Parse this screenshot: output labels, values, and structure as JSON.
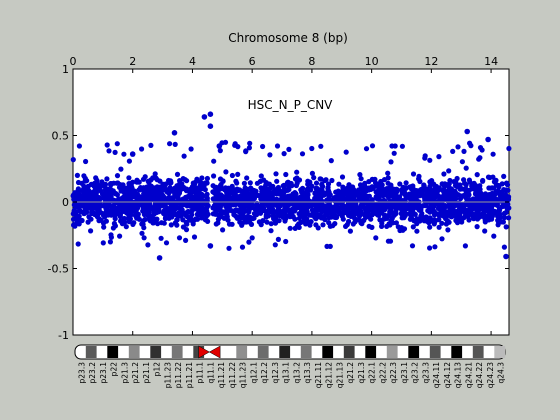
{
  "chart_data": {
    "type": "scatter",
    "title": "Chromosome 8 (bp)",
    "annotation": "HSC_N_P_CNV",
    "xlim": [
      0,
      14.6
    ],
    "ylim": [
      -1,
      1
    ],
    "xticks": [
      "0",
      "2",
      "4",
      "6",
      "8",
      "10",
      "12",
      "14"
    ],
    "yticks": [
      "1",
      "0.5",
      "0",
      "-0.5",
      "-1"
    ],
    "marker_color": "#0000cc",
    "baseline_color": "#999999",
    "gap_x": 4.6,
    "highlights": [
      {
        "x": 4.4,
        "y": 0.64
      },
      {
        "x": 4.6,
        "y": 0.66
      },
      {
        "x": 4.6,
        "y": 0.57
      },
      {
        "x": 4.9,
        "y": 0.42
      },
      {
        "x": 3.4,
        "y": 0.52
      },
      {
        "x": 2.0,
        "y": 0.36
      },
      {
        "x": 13.2,
        "y": 0.53
      },
      {
        "x": 13.9,
        "y": 0.47
      },
      {
        "x": 2.9,
        "y": -0.42
      },
      {
        "x": 14.5,
        "y": -0.41
      },
      {
        "x": 4.6,
        "y": -0.33
      }
    ],
    "ideogram": {
      "bands": [
        "p23.3",
        "p23.2",
        "p23.1",
        "p22",
        "p21.3",
        "p21.2",
        "p21.1",
        "p12",
        "p11.23",
        "p11.22",
        "p11.21",
        "p11.1",
        "q11.1",
        "q11.21",
        "q11.22",
        "q11.23",
        "q12.1",
        "q12.2",
        "q12.3",
        "q13.1",
        "q13.2",
        "q13.3",
        "q21.11",
        "q21.12",
        "q21.13",
        "q21.2",
        "q21.3",
        "q22.1",
        "q22.2",
        "q22.3",
        "q23.1",
        "q23.2",
        "q23.3",
        "q24.11",
        "q24.12",
        "q24.13",
        "q24.21",
        "q24.22",
        "q24.23",
        "q24.3"
      ]
    }
  }
}
